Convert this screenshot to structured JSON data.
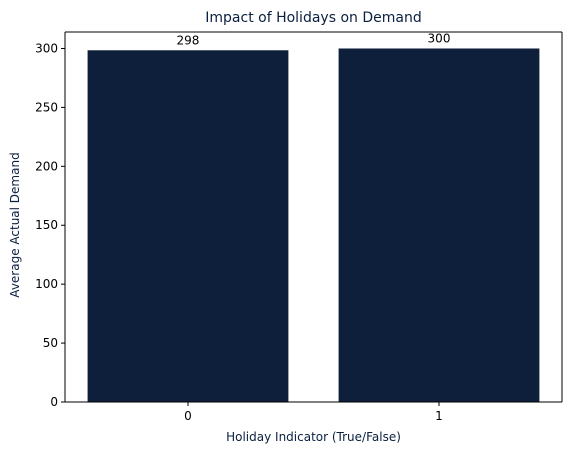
{
  "chart_data": {
    "type": "bar",
    "title": "Impact of Holidays on Demand",
    "xlabel": "Holiday Indicator (True/False)",
    "ylabel": "Average Actual Demand",
    "categories": [
      "0",
      "1"
    ],
    "values": [
      298.5,
      300
    ],
    "data_labels": [
      "298",
      "300"
    ],
    "ylim": [
      0,
      314
    ],
    "yticks": [
      0,
      50,
      100,
      150,
      200,
      250,
      300
    ],
    "grid": false,
    "legend": "none",
    "colors": {
      "bar": "#0d1f3a",
      "text_accent": "#0b2040"
    }
  }
}
